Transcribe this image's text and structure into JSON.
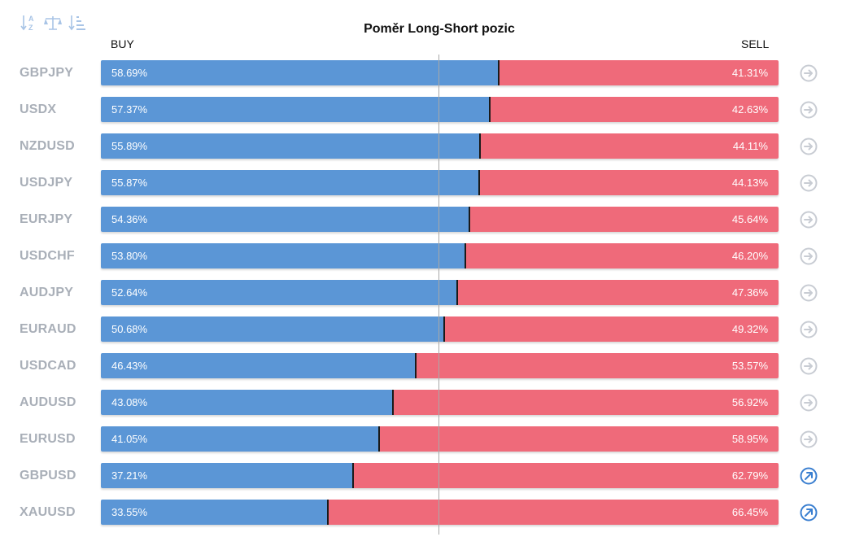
{
  "chart_data": {
    "type": "bar",
    "title": "Poměr Long-Short pozic",
    "buy_label": "BUY",
    "sell_label": "SELL",
    "colors": {
      "buy": "#5b96d6",
      "sell": "#ef6a7a",
      "symbol_text": "#a9afb8"
    },
    "categories": [
      "GBPJPY",
      "USDX",
      "NZDUSD",
      "USDJPY",
      "EURJPY",
      "USDCHF",
      "AUDJPY",
      "EURAUD",
      "USDCAD",
      "AUDUSD",
      "EURUSD",
      "GBPUSD",
      "XAUUSD"
    ],
    "series": [
      {
        "name": "BUY",
        "values": [
          58.69,
          57.37,
          55.89,
          55.87,
          54.36,
          53.8,
          52.64,
          50.68,
          46.43,
          43.08,
          41.05,
          37.21,
          33.55
        ],
        "labels": [
          "58.69%",
          "57.37%",
          "55.89%",
          "55.87%",
          "54.36%",
          "53.80%",
          "52.64%",
          "50.68%",
          "46.43%",
          "43.08%",
          "41.05%",
          "37.21%",
          "33.55%"
        ]
      },
      {
        "name": "SELL",
        "values": [
          41.31,
          42.63,
          44.11,
          44.13,
          45.64,
          46.2,
          47.36,
          49.32,
          53.57,
          56.92,
          58.95,
          62.79,
          66.45
        ],
        "labels": [
          "41.31%",
          "42.63%",
          "44.11%",
          "44.13%",
          "45.64%",
          "46.20%",
          "47.36%",
          "49.32%",
          "53.57%",
          "56.92%",
          "58.95%",
          "62.79%",
          "66.45%"
        ]
      }
    ],
    "row_icons": [
      "arrow-right-icon",
      "arrow-right-icon",
      "arrow-right-icon",
      "arrow-right-icon",
      "arrow-right-icon",
      "arrow-right-icon",
      "arrow-right-icon",
      "arrow-right-icon",
      "arrow-right-icon",
      "arrow-right-icon",
      "arrow-right-icon",
      "arrow-up-right-icon",
      "arrow-up-right-icon"
    ],
    "row_icon_colors": [
      "#c8ccd3",
      "#c8ccd3",
      "#c8ccd3",
      "#c8ccd3",
      "#c8ccd3",
      "#c8ccd3",
      "#c8ccd3",
      "#c8ccd3",
      "#c8ccd3",
      "#c8ccd3",
      "#c8ccd3",
      "#3a7fd0",
      "#3a7fd0"
    ],
    "xlim": [
      0,
      100
    ],
    "reference_line": 50
  },
  "toolbar": {
    "icons": [
      "sort-alpha-icon",
      "balance-scale-icon",
      "sort-amount-icon"
    ]
  }
}
